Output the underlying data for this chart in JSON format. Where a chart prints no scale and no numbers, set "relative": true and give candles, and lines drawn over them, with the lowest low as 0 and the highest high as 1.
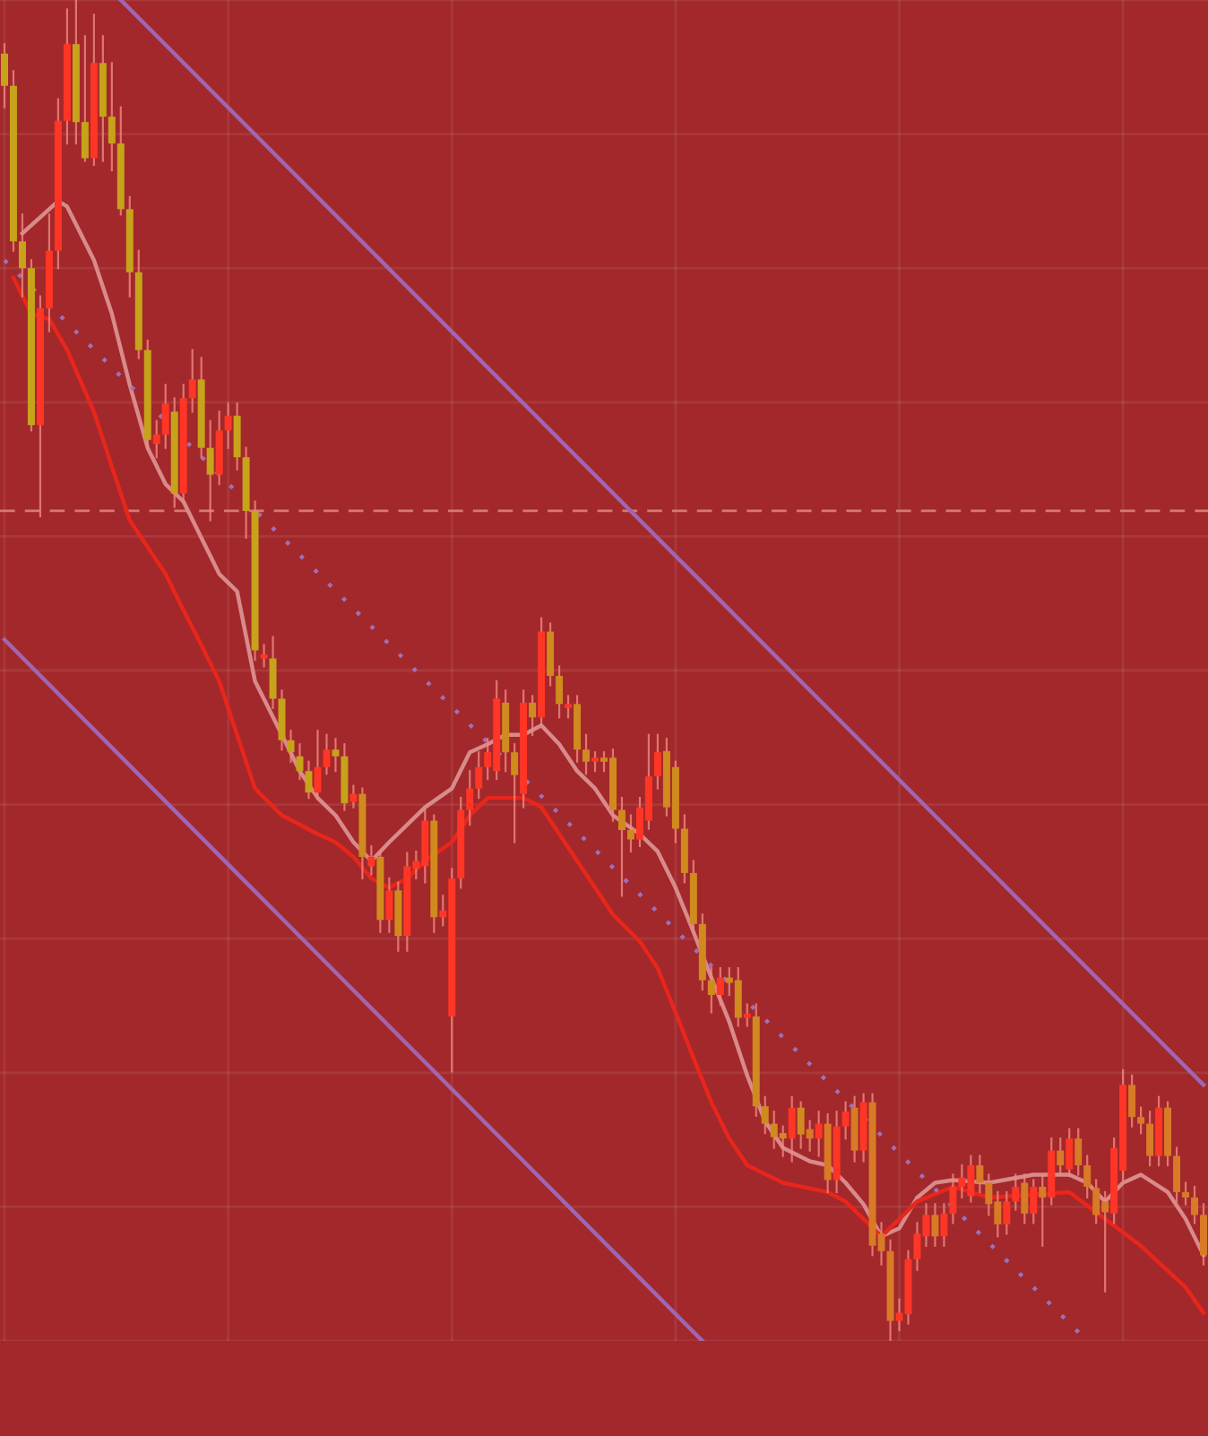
{
  "chart_data": {
    "type": "candlestick",
    "relative": true,
    "grid": true,
    "categories": [
      null,
      null,
      null,
      null,
      null,
      null,
      null,
      null,
      null,
      null,
      null,
      null,
      null,
      null,
      null,
      null,
      null,
      null,
      null,
      null,
      null,
      null,
      null,
      null,
      null,
      null,
      null,
      null,
      null,
      null,
      null,
      null,
      null,
      null,
      null,
      null,
      null,
      null,
      null,
      null,
      null,
      null,
      null,
      null,
      null,
      null,
      null,
      null,
      null,
      null,
      null,
      null,
      null,
      null,
      null,
      null,
      null,
      null,
      null,
      null,
      null,
      null,
      null,
      null,
      null,
      null,
      null,
      null,
      null,
      null,
      null,
      null,
      null,
      null,
      null,
      null,
      null,
      null,
      null,
      null,
      null,
      null,
      null,
      null,
      null,
      null,
      null,
      null,
      null,
      null,
      null,
      null,
      null,
      null,
      null,
      null,
      null,
      null,
      null,
      null,
      null,
      null,
      null,
      null,
      null,
      null,
      null,
      null,
      null,
      null,
      null,
      null,
      null,
      null,
      null,
      null,
      null,
      null,
      null,
      null,
      null,
      null,
      null,
      null,
      null,
      null,
      null,
      null,
      null,
      null,
      null,
      null,
      null,
      null,
      null
    ],
    "colors": [
      "#c6a31a",
      "#c6a31a",
      "#c6a31a",
      "#c6a31a",
      "#ff3526",
      "#ff3526",
      "#ff3526",
      "#ff3526",
      "#c6a31a",
      "#c6a31a",
      "#ff3526",
      "#c6a31a",
      "#c6a31a",
      "#c6a31a",
      "#c6a31a",
      "#c6a31a",
      "#c6a31a",
      "#ff3526",
      "#ff3526",
      "#c6a31a",
      "#ff3526",
      "#ff3526",
      "#c6a31a",
      "#c6a31a",
      "#ff3526",
      "#ff3526",
      "#c6a31a",
      "#c6a31a",
      "#c6a31a",
      "#ff3526",
      "#c6a31a",
      "#c6a31a",
      "#c6a31a",
      "#c6a31a",
      "#c6a31a",
      "#ff3526",
      "#ff3526",
      "#c6a31a",
      "#c6a31a",
      "#ff3526",
      "#d08a1e",
      "#ff3526",
      "#d08a1e",
      "#ff3526",
      "#d08a1e",
      "#ff3526",
      "#ff3526",
      "#ff3526",
      "#d08a1e",
      "#ff3526",
      "#ff3526",
      "#ff3526",
      "#ff3526",
      "#ff3526",
      "#ff3526",
      "#ff3526",
      "#d08a1e",
      "#d08a1e",
      "#ff3526",
      "#d08a1e",
      "#ff3526",
      "#d08a1e",
      "#d08a1e",
      "#ff3526",
      "#d08a1e",
      "#d08a1e",
      "#ff3526",
      "#d08a1e",
      "#d08a1e",
      "#d08a1e",
      "#d08a1e",
      "#ff3526",
      "#ff3526",
      "#ff3526",
      "#d08a1e",
      "#d08a1e",
      "#d08a1e",
      "#d08a1e",
      "#d08a1e",
      "#d08a1e",
      "#ff3526",
      "#d08a1e",
      "#d08a1e",
      "#ff3526",
      "#d08a1e",
      "#d08a1e",
      "#d08a1e",
      "#d08a1e",
      "#ff3526",
      "#d08a1e",
      "#d87a26",
      "#ff3526",
      "#d87a26",
      "#ff3526",
      "#ff3526",
      "#d87a26",
      "#ff3526",
      "#d87a26",
      "#d87a26",
      "#d87a26",
      "#ff3526",
      "#ff3526",
      "#ff3526",
      "#ff3526",
      "#d87a26",
      "#ff3526",
      "#ff3526",
      "#ff3526",
      "#ff3526",
      "#d87a26",
      "#d87a26",
      "#d87a26",
      "#ff3526",
      "#ff3526",
      "#d87a26",
      "#ff3526",
      "#d87a26",
      "#ff3526",
      "#d87a26",
      "#ff3526",
      "#d87a26",
      "#d87a26",
      "#d87a26",
      "#d87a26",
      "#ff3526",
      "#ff3526",
      "#d87a26",
      "#d87a26",
      "#d87a26",
      "#ff3526",
      "#d87a26",
      "#d87a26",
      "#d87a26",
      "#d87a26",
      "#d87a26"
    ],
    "ohlc": [
      [
        0.96,
        0.967,
        0.92,
        0.936
      ],
      [
        0.936,
        0.947,
        0.813,
        0.82
      ],
      [
        0.82,
        0.84,
        0.779,
        0.8
      ],
      [
        0.8,
        0.806,
        0.679,
        0.683
      ],
      [
        0.683,
        0.779,
        0.615,
        0.77
      ],
      [
        0.77,
        0.84,
        0.753,
        0.813
      ],
      [
        0.813,
        0.926,
        0.8,
        0.91
      ],
      [
        0.91,
        0.993,
        0.893,
        0.967
      ],
      [
        0.967,
        1.0,
        0.893,
        0.909
      ],
      [
        0.909,
        0.973,
        0.88,
        0.882
      ],
      [
        0.882,
        0.989,
        0.877,
        0.953
      ],
      [
        0.953,
        0.973,
        0.88,
        0.913
      ],
      [
        0.913,
        0.953,
        0.873,
        0.893
      ],
      [
        0.893,
        0.92,
        0.84,
        0.844
      ],
      [
        0.844,
        0.853,
        0.779,
        0.797
      ],
      [
        0.797,
        0.813,
        0.733,
        0.739
      ],
      [
        0.739,
        0.746,
        0.666,
        0.672
      ],
      [
        0.669,
        0.686,
        0.659,
        0.676
      ],
      [
        0.676,
        0.713,
        0.666,
        0.699
      ],
      [
        0.693,
        0.703,
        0.622,
        0.632
      ],
      [
        0.632,
        0.713,
        0.626,
        0.703
      ],
      [
        0.703,
        0.739,
        0.693,
        0.717
      ],
      [
        0.717,
        0.733,
        0.659,
        0.666
      ],
      [
        0.666,
        0.686,
        0.612,
        0.646
      ],
      [
        0.646,
        0.693,
        0.639,
        0.679
      ],
      [
        0.679,
        0.699,
        0.666,
        0.69
      ],
      [
        0.69,
        0.699,
        0.65,
        0.659
      ],
      [
        0.659,
        0.666,
        0.599,
        0.619
      ],
      [
        0.619,
        0.626,
        0.508,
        0.515
      ],
      [
        0.509,
        0.519,
        0.503,
        0.512
      ],
      [
        0.509,
        0.525,
        0.472,
        0.479
      ],
      [
        0.479,
        0.485,
        0.441,
        0.448
      ],
      [
        0.448,
        0.455,
        0.432,
        0.439
      ],
      [
        0.436,
        0.445,
        0.419,
        0.425
      ],
      [
        0.425,
        0.432,
        0.405,
        0.409
      ],
      [
        0.409,
        0.455,
        0.404,
        0.428
      ],
      [
        0.428,
        0.452,
        0.423,
        0.441
      ],
      [
        0.441,
        0.449,
        0.425,
        0.436
      ],
      [
        0.436,
        0.445,
        0.396,
        0.401
      ],
      [
        0.402,
        0.414,
        0.398,
        0.408
      ],
      [
        0.408,
        0.412,
        0.345,
        0.361
      ],
      [
        0.354,
        0.369,
        0.348,
        0.361
      ],
      [
        0.361,
        0.365,
        0.305,
        0.314
      ],
      [
        0.314,
        0.345,
        0.305,
        0.336
      ],
      [
        0.336,
        0.342,
        0.291,
        0.302
      ],
      [
        0.302,
        0.364,
        0.291,
        0.354
      ],
      [
        0.352,
        0.365,
        0.345,
        0.358
      ],
      [
        0.354,
        0.396,
        0.342,
        0.388
      ],
      [
        0.388,
        0.392,
        0.305,
        0.316
      ],
      [
        0.316,
        0.332,
        0.31,
        0.321
      ],
      [
        0.242,
        0.352,
        0.201,
        0.345
      ],
      [
        0.345,
        0.405,
        0.338,
        0.396
      ],
      [
        0.396,
        0.425,
        0.385,
        0.412
      ],
      [
        0.412,
        0.439,
        0.405,
        0.428
      ],
      [
        0.428,
        0.449,
        0.419,
        0.439
      ],
      [
        0.425,
        0.492,
        0.419,
        0.479
      ],
      [
        0.476,
        0.485,
        0.425,
        0.439
      ],
      [
        0.439,
        0.445,
        0.372,
        0.422
      ],
      [
        0.408,
        0.485,
        0.398,
        0.476
      ],
      [
        0.476,
        0.481,
        0.452,
        0.465
      ],
      [
        0.465,
        0.539,
        0.459,
        0.529
      ],
      [
        0.529,
        0.535,
        0.489,
        0.496
      ],
      [
        0.496,
        0.503,
        0.465,
        0.475
      ],
      [
        0.472,
        0.481,
        0.465,
        0.475
      ],
      [
        0.475,
        0.481,
        0.432,
        0.441
      ],
      [
        0.441,
        0.452,
        0.423,
        0.432
      ],
      [
        0.432,
        0.439,
        0.425,
        0.433
      ],
      [
        0.433,
        0.439,
        0.425,
        0.432
      ],
      [
        0.435,
        0.441,
        0.388,
        0.396
      ],
      [
        0.396,
        0.405,
        0.332,
        0.381
      ],
      [
        0.381,
        0.392,
        0.365,
        0.374
      ],
      [
        0.374,
        0.405,
        0.369,
        0.398
      ],
      [
        0.388,
        0.452,
        0.382,
        0.421
      ],
      [
        0.421,
        0.452,
        0.412,
        0.439
      ],
      [
        0.44,
        0.449,
        0.392,
        0.398
      ],
      [
        0.428,
        0.432,
        0.372,
        0.382
      ],
      [
        0.382,
        0.392,
        0.342,
        0.349
      ],
      [
        0.349,
        0.358,
        0.305,
        0.311
      ],
      [
        0.311,
        0.318,
        0.262,
        0.269
      ],
      [
        0.269,
        0.278,
        0.245,
        0.258
      ],
      [
        0.258,
        0.278,
        0.251,
        0.271
      ],
      [
        0.271,
        0.278,
        0.258,
        0.267
      ],
      [
        0.269,
        0.278,
        0.235,
        0.241
      ],
      [
        0.241,
        0.251,
        0.235,
        0.243
      ],
      [
        0.242,
        0.251,
        0.168,
        0.175
      ],
      [
        0.175,
        0.182,
        0.155,
        0.162
      ],
      [
        0.162,
        0.171,
        0.144,
        0.152
      ],
      [
        0.155,
        0.16,
        0.138,
        0.151
      ],
      [
        0.151,
        0.182,
        0.134,
        0.174
      ],
      [
        0.174,
        0.178,
        0.144,
        0.154
      ],
      [
        0.158,
        0.164,
        0.142,
        0.151
      ],
      [
        0.151,
        0.171,
        0.138,
        0.162
      ],
      [
        0.162,
        0.169,
        0.111,
        0.12
      ],
      [
        0.12,
        0.171,
        0.111,
        0.16
      ],
      [
        0.16,
        0.178,
        0.151,
        0.171
      ],
      [
        0.174,
        0.182,
        0.134,
        0.142
      ],
      [
        0.142,
        0.184,
        0.134,
        0.178
      ],
      [
        0.178,
        0.184,
        0.064,
        0.071
      ],
      [
        0.08,
        0.088,
        0.057,
        0.067
      ],
      [
        0.067,
        0.075,
        0.0,
        0.015
      ],
      [
        0.015,
        0.031,
        0.008,
        0.021
      ],
      [
        0.02,
        0.067,
        0.013,
        0.061
      ],
      [
        0.061,
        0.088,
        0.053,
        0.08
      ],
      [
        0.078,
        0.102,
        0.071,
        0.094
      ],
      [
        0.094,
        0.102,
        0.071,
        0.078
      ],
      [
        0.078,
        0.102,
        0.071,
        0.095
      ],
      [
        0.095,
        0.124,
        0.088,
        0.115
      ],
      [
        0.115,
        0.131,
        0.107,
        0.122
      ],
      [
        0.108,
        0.138,
        0.104,
        0.131
      ],
      [
        0.131,
        0.138,
        0.111,
        0.118
      ],
      [
        0.118,
        0.124,
        0.094,
        0.102
      ],
      [
        0.104,
        0.111,
        0.078,
        0.087
      ],
      [
        0.087,
        0.111,
        0.08,
        0.104
      ],
      [
        0.104,
        0.124,
        0.098,
        0.115
      ],
      [
        0.118,
        0.124,
        0.088,
        0.095
      ],
      [
        0.095,
        0.12,
        0.088,
        0.115
      ],
      [
        0.115,
        0.124,
        0.071,
        0.107
      ],
      [
        0.107,
        0.151,
        0.102,
        0.142
      ],
      [
        0.142,
        0.151,
        0.124,
        0.131
      ],
      [
        0.128,
        0.158,
        0.123,
        0.151
      ],
      [
        0.151,
        0.158,
        0.124,
        0.131
      ],
      [
        0.131,
        0.138,
        0.107,
        0.115
      ],
      [
        0.114,
        0.12,
        0.088,
        0.094
      ],
      [
        0.104,
        0.111,
        0.037,
        0.096
      ],
      [
        0.095,
        0.151,
        0.088,
        0.144
      ],
      [
        0.127,
        0.202,
        0.12,
        0.191
      ],
      [
        0.191,
        0.198,
        0.16,
        0.167
      ],
      [
        0.167,
        0.174,
        0.155,
        0.162
      ],
      [
        0.162,
        0.171,
        0.131,
        0.138
      ],
      [
        0.138,
        0.182,
        0.131,
        0.174
      ],
      [
        0.174,
        0.178,
        0.131,
        0.138
      ],
      [
        0.138,
        0.144,
        0.104,
        0.111
      ],
      [
        0.111,
        0.118,
        0.102,
        0.107
      ],
      [
        0.107,
        0.115,
        0.088,
        0.094
      ],
      [
        0.094,
        0.102,
        0.057,
        0.064
      ]
    ],
    "ref_lines": [
      {
        "axis": "y",
        "value": 0.619,
        "color": "#d77a72",
        "line_style": "dashed"
      }
    ],
    "series": [
      {
        "type": "line",
        "color": "#d98a8a",
        "line_style": "solid",
        "values": [
          null,
          null,
          0.826,
          null,
          null,
          null,
          0.85,
          0.846,
          null,
          null,
          0.806,
          null,
          0.766,
          null,
          0.713,
          null,
          0.666,
          null,
          0.639,
          null,
          0.626,
          null,
          0.599,
          null,
          0.572,
          null,
          0.559,
          null,
          0.492,
          null,
          null,
          0.452,
          null,
          0.425,
          null,
          0.405,
          null,
          0.392,
          null,
          0.372,
          null,
          0.358,
          null,
          0.372,
          null,
          0.385,
          null,
          0.398,
          null,
          null,
          0.412,
          null,
          0.439,
          null,
          0.445,
          null,
          0.452,
          null,
          0.452,
          null,
          0.459,
          null,
          0.445,
          null,
          0.425,
          null,
          0.412,
          null,
          0.392,
          null,
          null,
          0.378,
          null,
          0.365,
          null,
          0.338,
          null,
          0.305,
          null,
          0.271,
          null,
          0.238,
          null,
          0.198,
          null,
          0.164,
          null,
          0.144,
          null,
          null,
          0.134,
          null,
          0.131,
          null,
          0.118,
          null,
          0.102,
          null,
          0.078,
          null,
          0.084,
          null,
          0.107,
          null,
          0.118,
          null,
          0.12,
          null,
          null,
          null,
          0.118,
          null,
          null,
          null,
          null,
          0.124,
          null,
          null,
          null,
          0.124,
          null,
          0.118,
          null,
          0.104,
          null,
          0.118,
          null,
          0.124,
          null,
          null,
          0.111,
          null,
          0.091,
          null,
          0.064
        ]
      },
      {
        "type": "line",
        "color": "#e8261c",
        "line_style": "solid",
        "values": [
          null,
          0.793,
          null,
          0.766,
          null,
          0.762,
          null,
          0.739,
          null,
          null,
          0.693,
          null,
          0.652,
          null,
          0.612,
          null,
          0.592,
          null,
          0.572,
          null,
          0.545,
          null,
          0.519,
          null,
          0.492,
          null,
          0.452,
          null,
          0.412,
          null,
          null,
          0.392,
          null,
          0.385,
          null,
          0.378,
          null,
          0.372,
          null,
          0.361,
          null,
          0.345,
          null,
          0.338,
          null,
          0.345,
          null,
          0.358,
          null,
          null,
          0.372,
          null,
          0.392,
          null,
          0.405,
          null,
          null,
          null,
          0.405,
          null,
          0.398,
          null,
          0.378,
          null,
          0.358,
          null,
          0.338,
          null,
          0.318,
          null,
          null,
          0.298,
          null,
          0.278,
          null,
          0.245,
          null,
          0.211,
          null,
          0.178,
          null,
          0.151,
          null,
          0.131,
          null,
          null,
          null,
          0.118,
          null,
          null,
          null,
          null,
          0.111,
          null,
          0.104,
          null,
          null,
          null,
          0.078,
          null,
          0.091,
          null,
          0.104,
          null,
          null,
          null,
          0.115,
          null,
          null,
          null,
          0.107,
          null,
          null,
          null,
          null,
          null,
          null,
          null,
          null,
          0.111,
          null,
          null,
          null,
          0.091,
          null,
          null,
          null,
          0.071,
          null,
          null,
          null,
          null,
          0.04,
          null,
          0.021
        ]
      },
      {
        "type": "line",
        "color": "#a070b8",
        "line_style": "dotted",
        "values": [
          0.806,
          null,
          null,
          null,
          null,
          null,
          null,
          null,
          null,
          null,
          null,
          null,
          null,
          null,
          null,
          null,
          null,
          null,
          null,
          null,
          null,
          null,
          null,
          null,
          null,
          null,
          null,
          null,
          null,
          null,
          null,
          null,
          null,
          null,
          null,
          null,
          null,
          null,
          null,
          null,
          null,
          null,
          null,
          null,
          null,
          null,
          null,
          null,
          null,
          null,
          null,
          null,
          null,
          null,
          null,
          null,
          null,
          null,
          null,
          null,
          null,
          null,
          null,
          null,
          null,
          null,
          null,
          null,
          null,
          null,
          null,
          null,
          null,
          null,
          null,
          null,
          null,
          null,
          null,
          null,
          null,
          null,
          null,
          null,
          null,
          null,
          null,
          null,
          null,
          null,
          null,
          null,
          null,
          null,
          null,
          null,
          null,
          null,
          null,
          null,
          null,
          null,
          null,
          null,
          null,
          null,
          null,
          null,
          null,
          null,
          null,
          null,
          null,
          null,
          null,
          null,
          null,
          null,
          null,
          null,
          null,
          0.0,
          null,
          null,
          null,
          null,
          null,
          null,
          null,
          null,
          null,
          null,
          null,
          null,
          null
        ]
      },
      {
        "type": "line",
        "color": "#a066b0",
        "line_style": "solid",
        "values": [
          null,
          null,
          null,
          null,
          null,
          null,
          null,
          null,
          null,
          null,
          null,
          null,
          null,
          1.0,
          null,
          null,
          null,
          null,
          null,
          null,
          null,
          null,
          null,
          null,
          null,
          null,
          null,
          null,
          null,
          null,
          null,
          null,
          null,
          null,
          null,
          null,
          null,
          null,
          null,
          null,
          null,
          null,
          null,
          null,
          null,
          null,
          null,
          null,
          null,
          null,
          null,
          null,
          null,
          null,
          null,
          null,
          null,
          null,
          null,
          null,
          null,
          null,
          null,
          null,
          null,
          null,
          null,
          null,
          null,
          null,
          null,
          null,
          null,
          null,
          null,
          null,
          null,
          null,
          null,
          null,
          null,
          null,
          null,
          null,
          null,
          null,
          null,
          null,
          null,
          null,
          null,
          null,
          null,
          null,
          null,
          null,
          null,
          null,
          null,
          null,
          null,
          null,
          null,
          null,
          null,
          null,
          null,
          null,
          null,
          null,
          null,
          null,
          null,
          null,
          null,
          null,
          null,
          null,
          null,
          null,
          null,
          null,
          null,
          null,
          null,
          null,
          null,
          null,
          null,
          null,
          null,
          null,
          null,
          null,
          0.191
        ]
      },
      {
        "type": "line",
        "color": "#a066b0",
        "line_style": "solid",
        "values": [
          0.523,
          null,
          null,
          null,
          null,
          null,
          null,
          null,
          null,
          null,
          null,
          null,
          null,
          null,
          null,
          null,
          null,
          null,
          null,
          null,
          null,
          null,
          null,
          null,
          null,
          null,
          null,
          null,
          null,
          null,
          null,
          null,
          null,
          null,
          null,
          null,
          null,
          null,
          null,
          null,
          null,
          null,
          null,
          null,
          null,
          null,
          null,
          null,
          null,
          null,
          null,
          null,
          null,
          null,
          null,
          null,
          null,
          null,
          null,
          null,
          null,
          null,
          null,
          null,
          null,
          null,
          null,
          null,
          null,
          null,
          null,
          null,
          null,
          null,
          null,
          null,
          null,
          null,
          0.0,
          null,
          null,
          null,
          null,
          null,
          null,
          null,
          null,
          null,
          null,
          null,
          null,
          null,
          null,
          null,
          null,
          null,
          null,
          null,
          null,
          null,
          null,
          null,
          null,
          null,
          null,
          null,
          null,
          null,
          null,
          null,
          null,
          null,
          null,
          null,
          null,
          null,
          null,
          null,
          null,
          null,
          null,
          null,
          null,
          null,
          null,
          null,
          null,
          null,
          null,
          null,
          null,
          null,
          null,
          null,
          null
        ]
      }
    ]
  }
}
